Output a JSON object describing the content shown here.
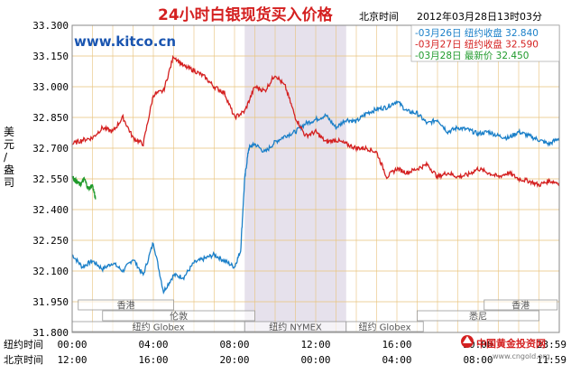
{
  "chart_data": {
    "type": "line",
    "title": "24小时白银现货买入价格",
    "timezone_label": "北京时间",
    "timestamp": "2012年03月28日13时03分",
    "watermark": "www.kitco.cn",
    "ylabel": "美元/盎司",
    "ylim": [
      31.8,
      33.3
    ],
    "yticks": [
      "33.300",
      "33.150",
      "33.000",
      "32.850",
      "32.700",
      "32.550",
      "32.400",
      "32.250",
      "32.100",
      "31.950",
      "31.800"
    ],
    "x_hours": [
      0,
      24
    ],
    "x_row1_label": "纽约时间",
    "x_row1_ticks": [
      "00:00",
      "04:00",
      "08:00",
      "12:00",
      "16:00",
      "20:00",
      "23:59"
    ],
    "x_row2_label": "北京时间",
    "x_row2_ticks": [
      "12:00",
      "16:00",
      "20:00",
      "00:00",
      "04:00",
      "08:00",
      "11:59"
    ],
    "shaded_range_hours": [
      8.5,
      13.5
    ],
    "market_sessions": [
      {
        "label": "香港",
        "start": 0.3,
        "end": 5.0,
        "row": 0
      },
      {
        "label": "香港",
        "start": 20.3,
        "end": 23.9,
        "row": 0
      },
      {
        "label": "伦敦",
        "start": 1.5,
        "end": 9.0,
        "row": 1
      },
      {
        "label": "悉尼",
        "start": 17.0,
        "end": 23.0,
        "row": 1
      },
      {
        "label": "纽约 Globex",
        "start": 0.0,
        "end": 8.5,
        "row": 2
      },
      {
        "label": "纽约 NYMEX",
        "start": 8.5,
        "end": 13.5,
        "row": 2
      },
      {
        "label": "纽约 Globex",
        "start": 13.5,
        "end": 17.3,
        "row": 2
      }
    ],
    "logo_text": "中国黄金投资网",
    "logo_url": "www.cngold.org",
    "colors": {
      "mar26": "#1a7fc8",
      "mar27": "#d42020",
      "mar28": "#1f9a2b",
      "grid": "#e8c27a",
      "title": "#d42020",
      "watermark": "#1a55b0",
      "shade": "#e6e1ec"
    },
    "series": [
      {
        "name": "03月26日",
        "legend": "-03月26日  纽约收盘 32.840",
        "hours": [
          0,
          0.5,
          1,
          1.5,
          2,
          2.5,
          3,
          3.5,
          4,
          4.5,
          5,
          5.5,
          6,
          6.5,
          7,
          7.5,
          8,
          8.3,
          8.5,
          8.7,
          9,
          9.5,
          10,
          10.5,
          11,
          11.5,
          12,
          12.5,
          13,
          13.5,
          14,
          14.5,
          15,
          15.5,
          16,
          16.5,
          17,
          17.5,
          18,
          18.5,
          19,
          19.5,
          20,
          20.5,
          21,
          21.5,
          22,
          22.5,
          23,
          23.5,
          24
        ],
        "values": [
          32.18,
          32.12,
          32.15,
          32.11,
          32.14,
          32.1,
          32.16,
          32.08,
          32.24,
          32.0,
          32.08,
          32.07,
          32.14,
          32.16,
          32.18,
          32.15,
          32.12,
          32.2,
          32.55,
          32.7,
          32.72,
          32.68,
          32.73,
          32.76,
          32.78,
          32.82,
          32.84,
          32.86,
          32.8,
          32.84,
          32.83,
          32.87,
          32.89,
          32.9,
          32.93,
          32.88,
          32.87,
          32.82,
          32.84,
          32.78,
          32.8,
          32.79,
          32.77,
          32.78,
          32.76,
          32.75,
          32.78,
          32.76,
          32.74,
          32.72,
          32.75
        ]
      },
      {
        "name": "03月27日",
        "legend": "-03月27日  纽约收盘 32.590",
        "hours": [
          0,
          0.5,
          1,
          1.5,
          2,
          2.5,
          3,
          3.5,
          4,
          4.5,
          5,
          5.5,
          6,
          6.5,
          7,
          7.5,
          8,
          8.5,
          9,
          9.5,
          10,
          10.5,
          11,
          11.5,
          12,
          12.5,
          13,
          13.5,
          14,
          14.5,
          15,
          15.5,
          16,
          16.5,
          17,
          17.5,
          18,
          18.5,
          19,
          19.5,
          20,
          20.5,
          21,
          21.5,
          22,
          22.5,
          23,
          23.5,
          24
        ],
        "values": [
          32.72,
          32.74,
          32.75,
          32.8,
          32.78,
          32.85,
          32.75,
          32.72,
          32.96,
          32.98,
          33.15,
          33.1,
          33.08,
          33.05,
          33.0,
          32.97,
          32.85,
          32.88,
          33.0,
          32.98,
          33.06,
          33.0,
          32.85,
          32.76,
          32.78,
          32.73,
          32.74,
          32.72,
          32.7,
          32.7,
          32.68,
          32.56,
          32.6,
          32.58,
          32.6,
          32.62,
          32.56,
          32.58,
          32.56,
          32.57,
          32.6,
          32.58,
          32.56,
          32.58,
          32.55,
          32.54,
          32.52,
          32.54,
          32.53
        ]
      },
      {
        "name": "03月28日",
        "legend": "-03月28日  最新价 32.450",
        "hours": [
          0,
          0.2,
          0.4,
          0.6,
          0.8,
          1.0,
          1.15
        ],
        "values": [
          32.56,
          32.54,
          32.52,
          32.55,
          32.5,
          32.52,
          32.45
        ]
      }
    ]
  }
}
